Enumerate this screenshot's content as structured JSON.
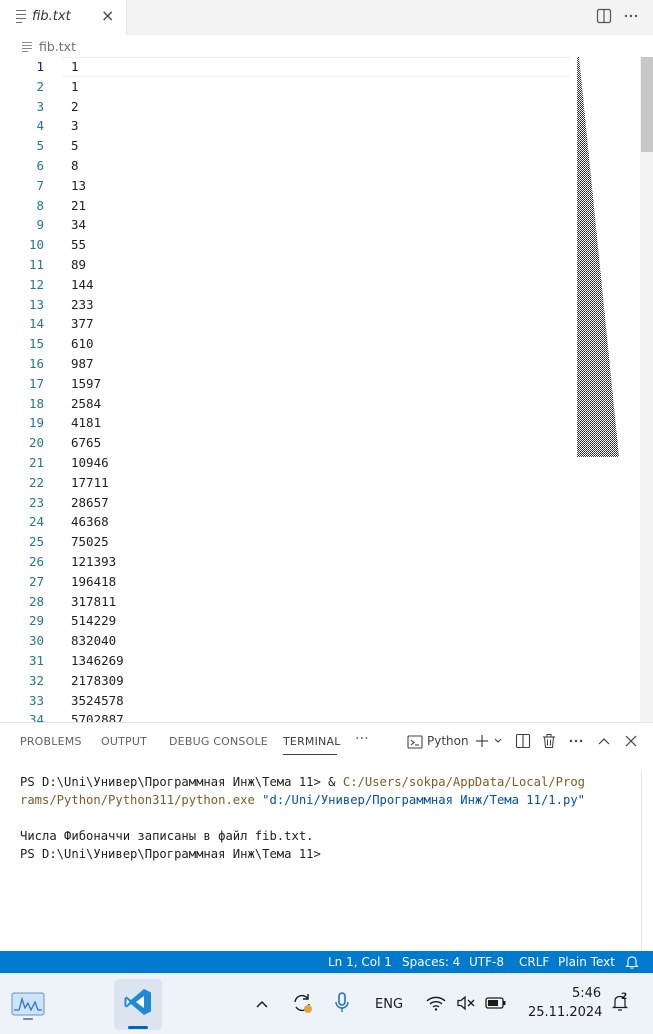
{
  "tab": {
    "filename": "fib.txt",
    "close_glyph": "×"
  },
  "toolbar": {
    "split_icon": "split-editor-icon",
    "more_icon": "more-actions-icon"
  },
  "breadcrumb": {
    "filename": "fib.txt"
  },
  "editor": {
    "current_line": 1,
    "lines": [
      "1",
      "1",
      "2",
      "3",
      "5",
      "8",
      "13",
      "21",
      "34",
      "55",
      "89",
      "144",
      "233",
      "377",
      "610",
      "987",
      "1597",
      "2584",
      "4181",
      "6765",
      "10946",
      "17711",
      "28657",
      "46368",
      "75025",
      "121393",
      "196418",
      "317811",
      "514229",
      "832040",
      "1346269",
      "2178309",
      "3524578",
      "5702887"
    ]
  },
  "panel": {
    "tabs": [
      "PROBLEMS",
      "OUTPUT",
      "DEBUG CONSOLE",
      "TERMINAL"
    ],
    "active_tab": "TERMINAL",
    "more": "···",
    "terminal_type": "Python",
    "terminal": {
      "line1_prompt": "PS D:\\Uni\\Универ\\Программная Инж\\Тема 11> & ",
      "line1_cmd": "C:/Users/sokpa/AppData/Local/Prog",
      "line2_cmd": "rams/Python/Python311/python.exe ",
      "line2_arg": "\"d:/Uni/Универ/Программная Инж/Тема 11/1.py\"",
      "line3": "Числа Фибоначчи записаны в файл fib.txt.",
      "line4": "PS D:\\Uni\\Универ\\Программная Инж\\Тема 11>"
    }
  },
  "status": {
    "position": "Ln 1, Col 1",
    "spaces": "Spaces: 4",
    "encoding": "UTF-8",
    "eol": "CRLF",
    "language": "Plain Text"
  },
  "taskbar": {
    "language": "ENG",
    "time": "5:46",
    "date": "25.11.2024",
    "notifications": "2"
  },
  "colors": {
    "accent": "#007acc",
    "line_number": "#237893",
    "terminal_path": "#795e26",
    "terminal_string": "#0451a5"
  }
}
